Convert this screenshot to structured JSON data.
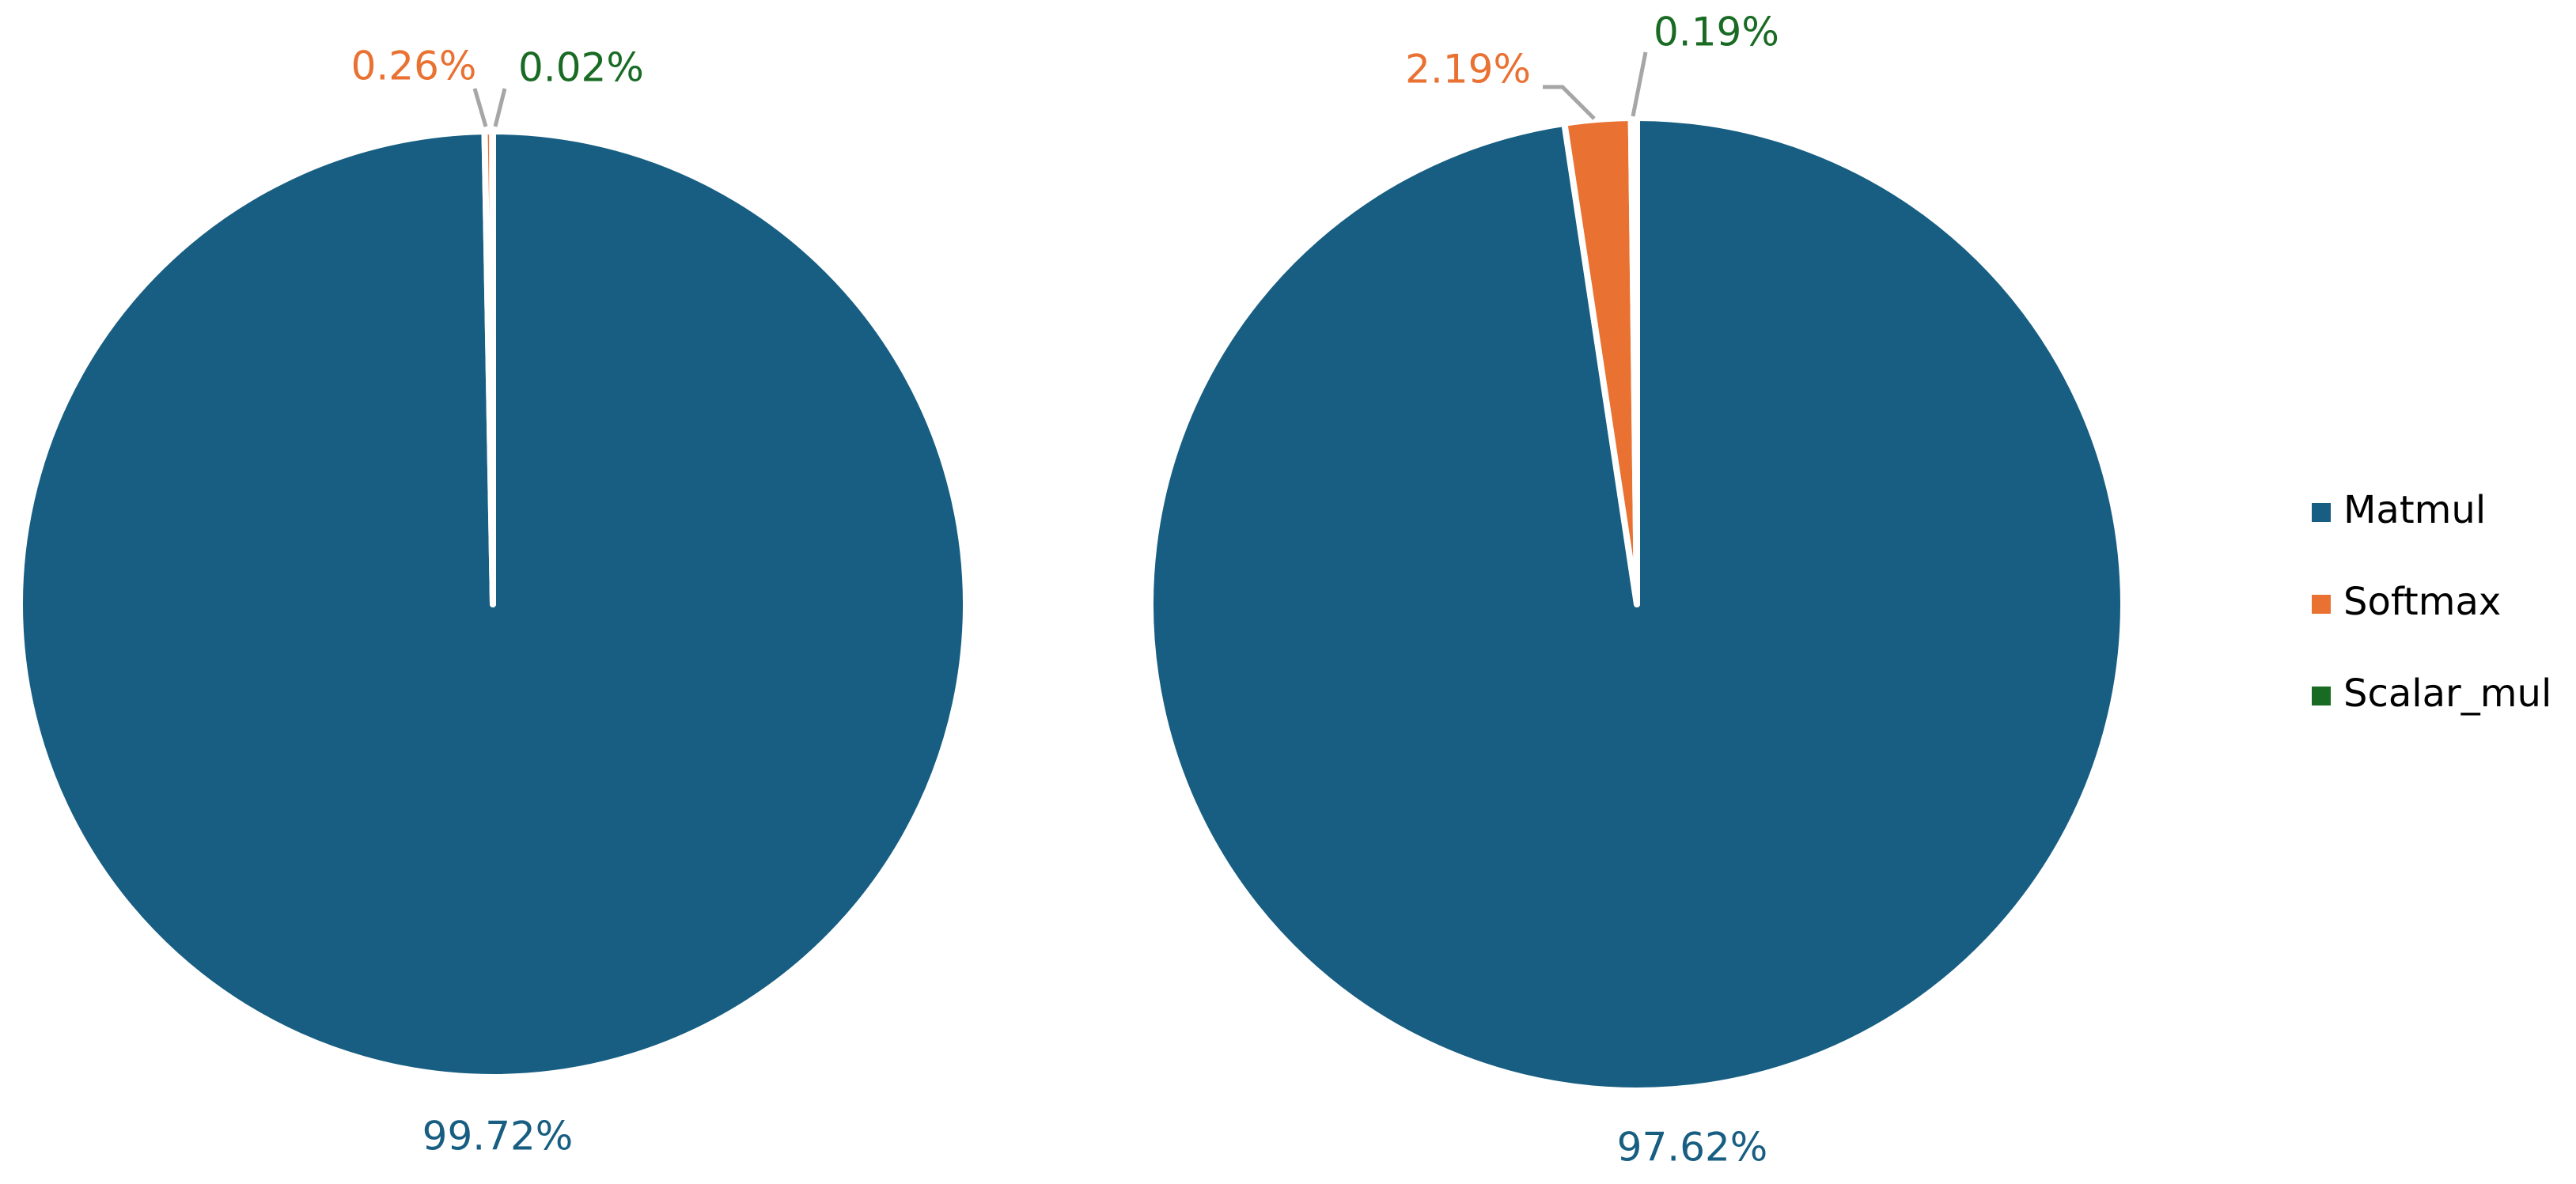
{
  "chart_data": [
    {
      "type": "pie",
      "categories": [
        "Matmul",
        "Softmax",
        "Scalar_mul"
      ],
      "colors": [
        "#175e82",
        "#e97132",
        "#196b24"
      ],
      "values": [
        99.72,
        0.26,
        0.02
      ],
      "value_labels": [
        "99.72%",
        "0.26%",
        "0.02%"
      ],
      "legend": "right"
    },
    {
      "type": "pie",
      "categories": [
        "Matmul",
        "Softmax",
        "Scalar_mul"
      ],
      "colors": [
        "#175e82",
        "#e97132",
        "#196b24"
      ],
      "values": [
        97.62,
        2.19,
        0.19
      ],
      "value_labels": [
        "97.62%",
        "2.19%",
        "0.19%"
      ]
    }
  ]
}
